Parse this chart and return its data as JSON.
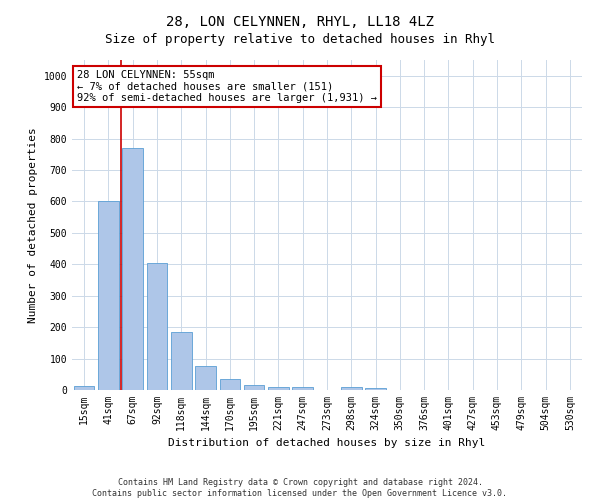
{
  "title": "28, LON CELYNNEN, RHYL, LL18 4LZ",
  "subtitle": "Size of property relative to detached houses in Rhyl",
  "xlabel": "Distribution of detached houses by size in Rhyl",
  "ylabel": "Number of detached properties",
  "bar_labels": [
    "15sqm",
    "41sqm",
    "67sqm",
    "92sqm",
    "118sqm",
    "144sqm",
    "170sqm",
    "195sqm",
    "221sqm",
    "247sqm",
    "273sqm",
    "298sqm",
    "324sqm",
    "350sqm",
    "376sqm",
    "401sqm",
    "427sqm",
    "453sqm",
    "479sqm",
    "504sqm",
    "530sqm"
  ],
  "bar_values": [
    12,
    600,
    770,
    405,
    185,
    75,
    35,
    15,
    10,
    10,
    0,
    10,
    5,
    0,
    0,
    0,
    0,
    0,
    0,
    0,
    0
  ],
  "bar_color": "#aec6e8",
  "bar_edge_color": "#5a9fd4",
  "vline_x_pos": 1.5,
  "vline_color": "#cc0000",
  "annotation_text": "28 LON CELYNNEN: 55sqm\n← 7% of detached houses are smaller (151)\n92% of semi-detached houses are larger (1,931) →",
  "annotation_box_color": "white",
  "annotation_box_edge": "#cc0000",
  "ylim": [
    0,
    1050
  ],
  "yticks": [
    0,
    100,
    200,
    300,
    400,
    500,
    600,
    700,
    800,
    900,
    1000
  ],
  "footnote1": "Contains HM Land Registry data © Crown copyright and database right 2024.",
  "footnote2": "Contains public sector information licensed under the Open Government Licence v3.0.",
  "bg_color": "white",
  "grid_color": "#ccd9e8",
  "title_fontsize": 10,
  "subtitle_fontsize": 9,
  "axis_label_fontsize": 8,
  "tick_fontsize": 7,
  "annot_fontsize": 7.5,
  "footnote_fontsize": 6
}
